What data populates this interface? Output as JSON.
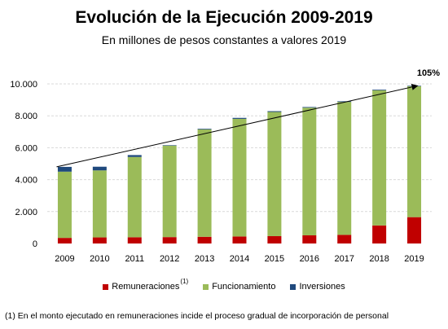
{
  "title": "Evolución de la Ejecución 2009-2019",
  "subtitle": "En millones de pesos constantes a valores 2019",
  "footnote": "(1) En el monto ejecutado en remuneraciones incide el proceso gradual de incorporación de personal",
  "chart_data": {
    "type": "bar",
    "stacked": true,
    "categories": [
      "2009",
      "2010",
      "2011",
      "2012",
      "2013",
      "2014",
      "2015",
      "2016",
      "2017",
      "2018",
      "2019"
    ],
    "series": [
      {
        "name": "Remuneraciones",
        "legend_superscript": "(1)",
        "color": "#c00000",
        "values": [
          350,
          380,
          390,
          400,
          420,
          440,
          460,
          510,
          540,
          1130,
          1650
        ]
      },
      {
        "name": "Funcionamiento",
        "color": "#9bbb59",
        "values": [
          4150,
          4200,
          5030,
          5730,
          6730,
          7370,
          7780,
          8000,
          8330,
          8470,
          8200
        ]
      },
      {
        "name": "Inversiones",
        "color": "#1f497d",
        "values": [
          300,
          230,
          120,
          30,
          40,
          60,
          50,
          40,
          40,
          40,
          30
        ]
      }
    ],
    "ylim": [
      0,
      10000
    ],
    "yticks": [
      "0",
      "2.000",
      "4.000",
      "6.000",
      "8.000",
      "10.000"
    ],
    "ytick_values": [
      0,
      2000,
      4000,
      6000,
      8000,
      10000
    ],
    "gridlines": true,
    "trend_arrow": {
      "from_category": "2009",
      "to_category": "2019",
      "label": "105%"
    },
    "legend_placement": "bottom"
  }
}
